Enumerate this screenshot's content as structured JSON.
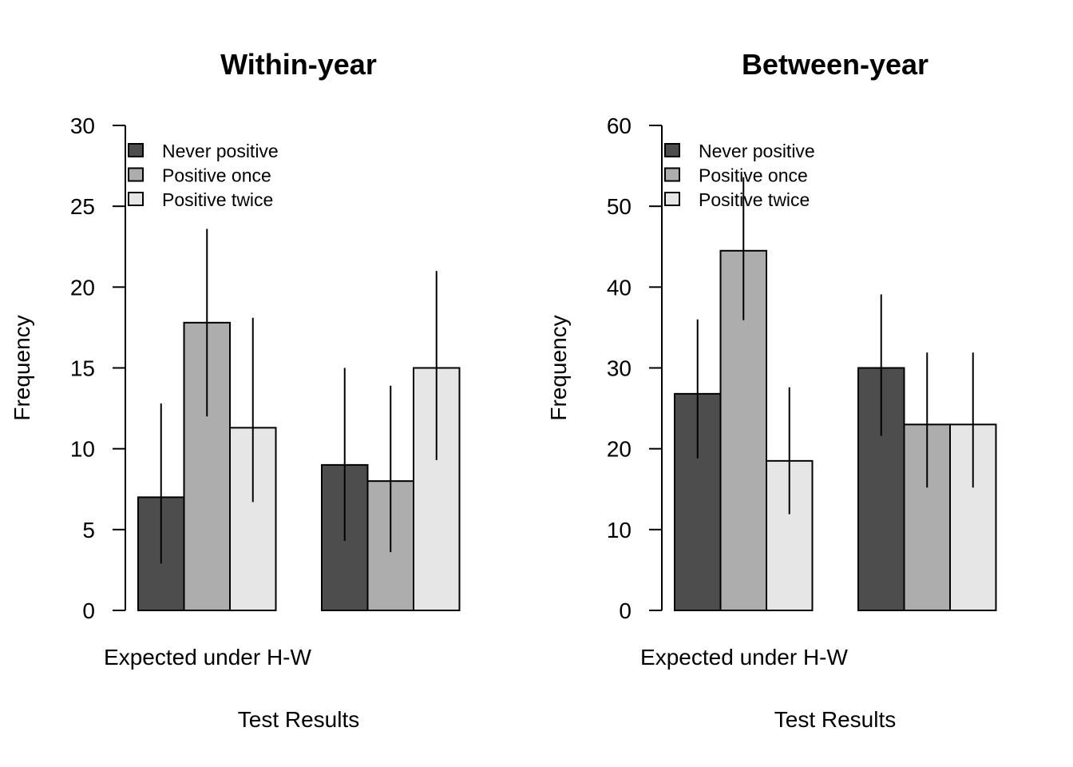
{
  "chart_data": [
    {
      "type": "bar",
      "title": "Within-year",
      "xlabel": "Test Results",
      "ylabel": "Frequency",
      "ylim": [
        0,
        30
      ],
      "yticks": [
        0,
        5,
        10,
        15,
        20,
        25,
        30
      ],
      "categories": [
        "Expected under H-W",
        ""
      ],
      "series": [
        {
          "name": "Never positive",
          "color": "#4d4d4d",
          "values": [
            7,
            9
          ],
          "err_low": [
            2.9,
            4.3
          ],
          "err_high": [
            12.8,
            15.0
          ]
        },
        {
          "name": "Positive once",
          "color": "#adadad",
          "values": [
            17.8,
            8
          ],
          "err_low": [
            12.0,
            3.6
          ],
          "err_high": [
            23.6,
            13.9
          ]
        },
        {
          "name": "Positive twice",
          "color": "#e6e6e6",
          "values": [
            11.3,
            15
          ],
          "err_low": [
            6.7,
            9.3
          ],
          "err_high": [
            18.1,
            21.0
          ]
        }
      ],
      "legend": "top-left"
    },
    {
      "type": "bar",
      "title": "Between-year",
      "xlabel": "Test Results",
      "ylabel": "Frequency",
      "ylim": [
        0,
        60
      ],
      "yticks": [
        0,
        10,
        20,
        30,
        40,
        50,
        60
      ],
      "categories": [
        "Expected under H-W",
        ""
      ],
      "series": [
        {
          "name": "Never positive",
          "color": "#4d4d4d",
          "values": [
            26.8,
            30
          ],
          "err_low": [
            18.8,
            21.6
          ],
          "err_high": [
            36.0,
            39.1
          ]
        },
        {
          "name": "Positive once",
          "color": "#adadad",
          "values": [
            44.5,
            23
          ],
          "err_low": [
            35.9,
            15.2
          ],
          "err_high": [
            53.6,
            31.9
          ]
        },
        {
          "name": "Positive twice",
          "color": "#e6e6e6",
          "values": [
            18.5,
            23
          ],
          "err_low": [
            11.9,
            15.2
          ],
          "err_high": [
            27.6,
            31.9
          ]
        }
      ],
      "legend": "top-left"
    }
  ]
}
